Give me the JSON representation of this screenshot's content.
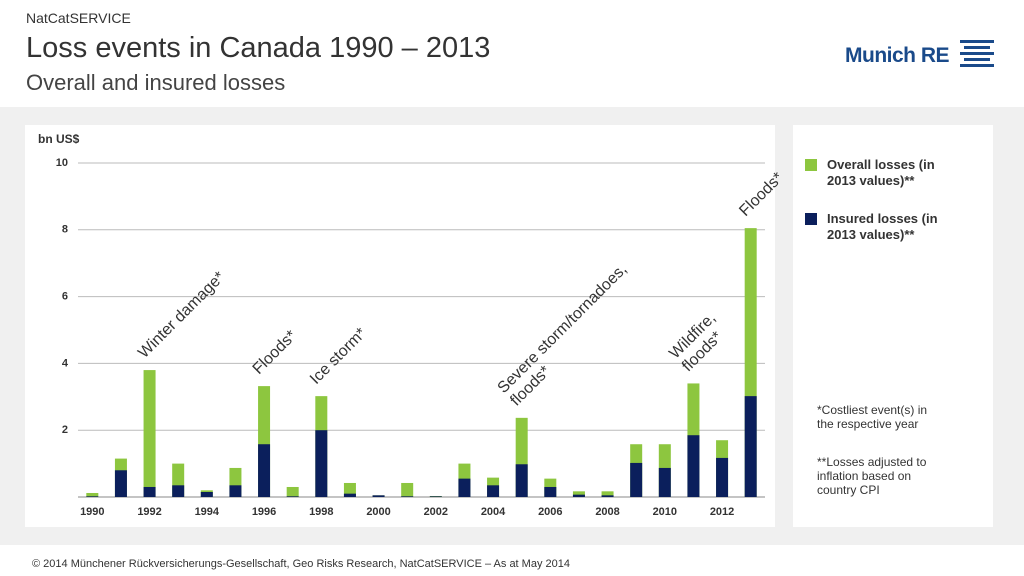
{
  "header": {
    "kicker": "NatCatSERVICE",
    "title": "Loss events in Canada 1990 – 2013",
    "subtitle": "Overall and insured losses",
    "logo": "Munich RE"
  },
  "chart_data": {
    "type": "bar",
    "mode": "overlap",
    "ylabel": "bn US$",
    "categories": [
      "1990",
      null,
      "1992",
      null,
      "1994",
      null,
      "1996",
      null,
      "1998",
      null,
      "2000",
      null,
      "2002",
      null,
      "2004",
      null,
      "2006",
      null,
      "2008",
      null,
      "2010",
      null,
      "2012",
      null
    ],
    "series": [
      {
        "name": "Overall losses (in 2013 values)**",
        "color": "#8dc63f",
        "values": [
          0.12,
          1.15,
          3.8,
          1.0,
          0.2,
          0.87,
          3.32,
          0.3,
          3.02,
          0.42,
          0.05,
          0.42,
          0.03,
          1.0,
          0.58,
          2.37,
          0.55,
          0.17,
          0.17,
          1.58,
          1.58,
          3.4,
          1.7,
          8.05
        ]
      },
      {
        "name": "Insured losses (in 2013 values)**",
        "color": "#0b1f5c",
        "values": [
          0.02,
          0.8,
          0.3,
          0.35,
          0.15,
          0.35,
          1.58,
          0.02,
          2.0,
          0.1,
          0.05,
          0.02,
          0.02,
          0.55,
          0.35,
          0.98,
          0.3,
          0.07,
          0.05,
          1.02,
          0.87,
          1.85,
          1.17,
          3.02
        ]
      }
    ],
    "annotations": [
      null,
      null,
      [
        "Winter damage*"
      ],
      null,
      null,
      null,
      [
        "Floods*"
      ],
      null,
      [
        "Ice storm*"
      ],
      null,
      null,
      null,
      null,
      null,
      null,
      [
        "Severe storm/tornadoes,",
        "floods*"
      ],
      null,
      null,
      null,
      null,
      null,
      [
        "Wildfire,",
        "floods*"
      ],
      null,
      [
        "Floods*"
      ]
    ],
    "ylim": [
      0,
      10
    ],
    "yticks": [
      2,
      4,
      6,
      8,
      10
    ],
    "grid": true
  },
  "notes": [
    "*Costliest event(s) in the respective year",
    "**Losses adjusted to inflation based on country CPI"
  ],
  "footer": "© 2014 Münchener Rückversicherungs-Gesellschaft, Geo Risks Research, NatCatSERVICE – As at May 2014"
}
